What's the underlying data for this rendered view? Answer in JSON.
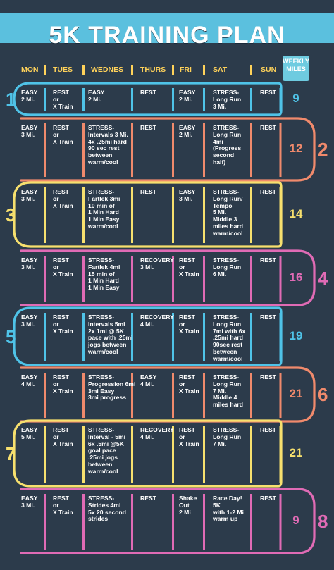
{
  "title": "5K TRAINING PLAN",
  "headers": [
    "MON",
    "TUES",
    "WEDNES",
    "THURS",
    "FRI",
    "SAT",
    "SUN",
    "WEEKLY MILES"
  ],
  "colors": {
    "background": "#2c3b4b",
    "header": "#ffd25a",
    "title_band": "#5bc0de"
  },
  "weeks": [
    {
      "num": "1",
      "color": "#4fc3e8",
      "total": "9",
      "days": [
        "EASY\n2 Mi.",
        "REST\nor\nX Train",
        "EASY\n2 Mi.",
        "REST",
        "EASY\n2 Mi.",
        "STRESS-\nLong Run\n3 Mi.",
        "REST"
      ]
    },
    {
      "num": "2",
      "color": "#f08a6c",
      "total": "12",
      "days": [
        "EASY\n3 Mi.",
        "REST\nor\nX Train",
        "STRESS-\nIntervals 3 Mi.\n4x .25mi hard\n90 sec rest\nbetween\nwarm/cool",
        "REST",
        "EASY\n2 Mi.",
        "STRESS-\nLong Run\n4mi\n(Progress\nsecond\nhalf)",
        "REST"
      ]
    },
    {
      "num": "3",
      "color": "#f7e06e",
      "total": "14",
      "days": [
        "EASY\n3 Mi.",
        "REST\nor\nX Train",
        "STRESS-\nFartlek 3mi\n10 min of\n1 Min Hard\n1 Min Easy\nwarm/cool",
        "REST",
        "EASY\n3 Mi.",
        "STRESS-\nLong Run/\nTempo\n5 Mi.\nMiddle 3\nmiles hard\nwarm/cool",
        "REST"
      ]
    },
    {
      "num": "4",
      "color": "#e06bb5",
      "total": "16",
      "days": [
        "EASY\n3 Mi.",
        "REST\nor\nX Train",
        "STRESS-\nFartlek 4mi\n15 min of\n1 Min Hard\n1 Min Easy",
        "RECOVERY\n3 Mi.",
        "REST\nor\nX Train",
        "STRESS-\nLong Run\n6 Mi.",
        "REST"
      ]
    },
    {
      "num": "5",
      "color": "#4fc3e8",
      "total": "19",
      "days": [
        "EASY\n3 Mi.",
        "REST\nor\nX Train",
        "STRESS-\nIntervals 5mi\n2x 1mi @ 5K\npace with .25mi\njogs between\nwarm/cool",
        "RECOVERY\n4 Mi.",
        "REST\nor\nX Train",
        "STRESS-\nLong Run\n7mi with 6x\n.25mi hard\n90sec rest\nbetween\nwarm/cool",
        "REST"
      ]
    },
    {
      "num": "6",
      "color": "#f08a6c",
      "total": "21",
      "days": [
        "EASY\n4 Mi.",
        "REST\nor\nX Train",
        "STRESS-\nProgression 6mi\n3mi Easy\n3mi progress",
        "EASY\n4 Mi.",
        "REST\nor\nX Train",
        "STRESS-\nLong Run\n7 Mi.\nMiddle 4\nmiles hard",
        "REST"
      ]
    },
    {
      "num": "7",
      "color": "#f7e06e",
      "total": "21",
      "days": [
        "EASY\n5 Mi.",
        "REST\nor\nX Train",
        "STRESS-\nInterval - 5mi\n6x .5mi @5K\ngoal pace\n.25mi jogs\nbetween\nwarm/cool",
        "RECOVERY\n4 Mi.",
        "REST\nor\nX Train",
        "STRESS-\nLong Run\n7 Mi.",
        "REST"
      ]
    },
    {
      "num": "8",
      "color": "#e06bb5",
      "total": "9",
      "days": [
        "EASY\n3 Mi.",
        "REST\nor\nX Train",
        "STRESS-\nStrides 4mi\n5x 20 second\nstrides",
        "REST",
        "Shake\nOut\n2 Mi",
        "Race Day!\n5K\nwith 1-2 Mi\nwarm up",
        "REST"
      ]
    }
  ]
}
